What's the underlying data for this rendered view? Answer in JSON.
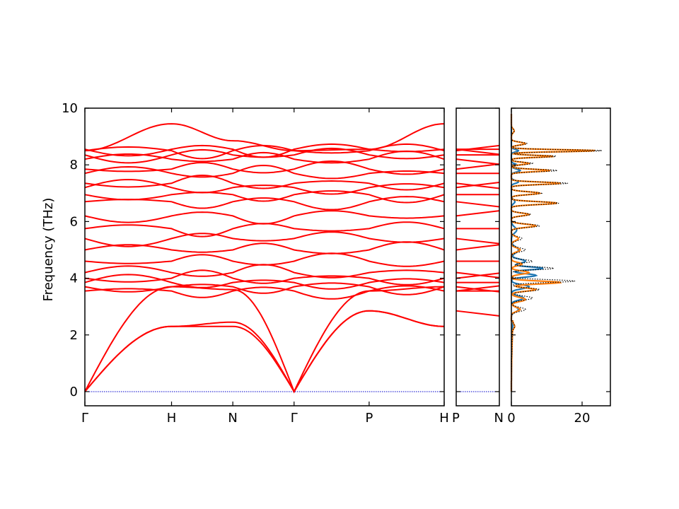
{
  "chart_data": [
    {
      "type": "line",
      "panel": "band-structure",
      "ylabel": "Frequency (THz)",
      "ylim": [
        -0.5,
        10
      ],
      "yticks": [
        0,
        2,
        4,
        6,
        8,
        10
      ],
      "path_labels": [
        "Γ",
        "H",
        "N",
        "Γ",
        "P",
        "H"
      ],
      "segments": [
        "Γ-H",
        "H-N",
        "N-Γ",
        "Γ-P",
        "P-H"
      ],
      "segment_lengths": [
        1.0,
        0.707,
        0.707,
        0.866,
        0.866
      ],
      "band_color": "#ff0000",
      "zero_line_color": "#0000cc",
      "acoustic": {
        "Γ": [
          0,
          0,
          0
        ],
        "H": [
          2.3,
          2.3,
          3.7
        ],
        "N": [
          2.3,
          2.45,
          3.6
        ],
        "P": [
          2.85,
          2.85,
          3.55
        ]
      },
      "optical_levels": [
        3.55,
        3.7,
        3.85,
        4.0,
        4.2,
        4.6,
        5.0,
        5.4,
        5.75,
        6.2,
        6.7,
        6.95,
        7.2,
        7.35,
        7.7,
        7.85,
        8.2,
        8.35,
        8.5,
        8.55
      ],
      "top_band": {
        "Γ": 8.5,
        "H": 9.45,
        "N": 8.85,
        "P": 8.55
      }
    },
    {
      "type": "line",
      "panel": "band-structure-secondary",
      "path_labels": [
        "P",
        "N"
      ],
      "ylim": [
        -0.5,
        10
      ]
    },
    {
      "type": "line",
      "panel": "phonon-dos",
      "xlim": [
        0,
        28
      ],
      "xticks": [
        0,
        20
      ],
      "ylim": [
        -0.5,
        10
      ],
      "series": [
        {
          "color": "#1f77b4",
          "peaks": [
            [
              2.9,
              2.0,
              0.12
            ],
            [
              3.3,
              3.5,
              0.1
            ],
            [
              3.7,
              5.0,
              0.1
            ],
            [
              4.1,
              7.0,
              0.08
            ],
            [
              4.35,
              9.0,
              0.07
            ],
            [
              4.6,
              4.0,
              0.1
            ],
            [
              5.0,
              2.0,
              0.15
            ],
            [
              5.7,
              1.5,
              0.15
            ],
            [
              6.7,
              1.0,
              0.1
            ],
            [
              7.4,
              2.0,
              0.07
            ],
            [
              7.8,
              2.5,
              0.07
            ],
            [
              8.5,
              2.0,
              0.06
            ],
            [
              8.0,
              1.5,
              0.06
            ]
          ]
        },
        {
          "color": "#ff7f0e",
          "peaks": [
            [
              2.3,
              0.6,
              0.1
            ],
            [
              2.9,
              2.5,
              0.1
            ],
            [
              3.25,
              4.0,
              0.1
            ],
            [
              3.6,
              7.0,
              0.08
            ],
            [
              3.85,
              14.0,
              0.07
            ],
            [
              4.2,
              5.0,
              0.08
            ],
            [
              4.5,
              3.0,
              0.08
            ],
            [
              5.0,
              2.5,
              0.1
            ],
            [
              5.4,
              2.0,
              0.1
            ],
            [
              5.85,
              7.0,
              0.08
            ],
            [
              6.25,
              5.0,
              0.07
            ],
            [
              6.65,
              13.0,
              0.07
            ],
            [
              7.0,
              8.0,
              0.07
            ],
            [
              7.35,
              14.0,
              0.06
            ],
            [
              7.8,
              11.0,
              0.06
            ],
            [
              8.05,
              5.0,
              0.06
            ],
            [
              8.3,
              12.0,
              0.05
            ],
            [
              8.5,
              24.0,
              0.05
            ],
            [
              8.75,
              4.0,
              0.07
            ],
            [
              9.2,
              0.8,
              0.1
            ]
          ]
        },
        {
          "color": "#000000",
          "style": "dotted",
          "peaks": [
            [
              2.3,
              0.6,
              0.1
            ],
            [
              2.9,
              4.0,
              0.1
            ],
            [
              3.3,
              6.0,
              0.1
            ],
            [
              3.6,
              8.0,
              0.08
            ],
            [
              3.9,
              18.0,
              0.07
            ],
            [
              4.35,
              12.0,
              0.07
            ],
            [
              4.6,
              6.0,
              0.08
            ],
            [
              5.0,
              4.0,
              0.1
            ],
            [
              5.4,
              3.0,
              0.1
            ],
            [
              5.85,
              8.0,
              0.08
            ],
            [
              6.25,
              5.5,
              0.07
            ],
            [
              6.65,
              13.5,
              0.07
            ],
            [
              7.0,
              8.5,
              0.07
            ],
            [
              7.35,
              16.0,
              0.06
            ],
            [
              7.8,
              13.0,
              0.06
            ],
            [
              8.05,
              6.0,
              0.06
            ],
            [
              8.3,
              13.0,
              0.05
            ],
            [
              8.5,
              26.0,
              0.05
            ],
            [
              8.75,
              4.5,
              0.07
            ],
            [
              9.2,
              0.8,
              0.1
            ]
          ]
        }
      ]
    }
  ]
}
